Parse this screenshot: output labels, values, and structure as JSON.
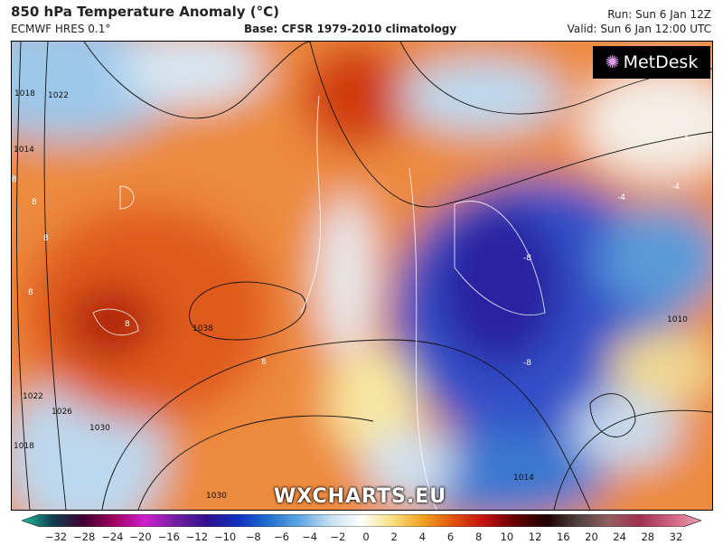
{
  "header": {
    "title": "850 hPa Temperature Anomaly (°C)",
    "model": "ECMWF HRES 0.1°",
    "base": "Base: CFSR 1979-2010 climatology",
    "run": "Run: Sun 6 Jan 12Z",
    "valid": "Valid: Sun 6 Jan 12:00 UTC"
  },
  "logo": {
    "text": "MetDesk"
  },
  "watermark": "WXCHARTS.EU",
  "map": {
    "isobar_labels": [
      "1018",
      "1022",
      "1014",
      "1038",
      "1022",
      "1026",
      "1030",
      "1018",
      "1030",
      "1014",
      "1010"
    ],
    "anomaly_labels": [
      "8",
      "8",
      "8",
      "8",
      "8",
      "8",
      "-8",
      "-8",
      "-4",
      "-4",
      "-4"
    ]
  },
  "colorbar": {
    "ticks": [
      "−32",
      "−28",
      "−24",
      "−20",
      "−16",
      "−12",
      "−10",
      "−8",
      "−6",
      "−4",
      "−2",
      "0",
      "2",
      "4",
      "6",
      "8",
      "10",
      "12",
      "16",
      "20",
      "24",
      "28",
      "32"
    ],
    "colors": [
      "#20c0a0",
      "#104050",
      "#400030",
      "#a00060",
      "#d020d0",
      "#7020a0",
      "#301090",
      "#1030c0",
      "#2070d0",
      "#60a8e0",
      "#c8e0f0",
      "#ffffff",
      "#f8e080",
      "#f0a020",
      "#e05010",
      "#c01010",
      "#600000",
      "#200000",
      "#504040",
      "#906060",
      "#a03050",
      "#d06080",
      "#f0a0b0"
    ]
  }
}
